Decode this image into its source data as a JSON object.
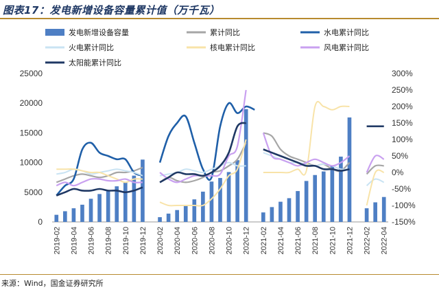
{
  "header": {
    "title": "图表17：发电新增设备容量累计值（万千瓦）"
  },
  "footer": {
    "source": "来源：Wind，国金证券研究所"
  },
  "chart_data": {
    "type": "bar+line",
    "title": "图表17：发电新增设备容量累计值（万千瓦）",
    "y_left": {
      "ticks": [
        0,
        5000,
        10000,
        15000,
        20000,
        25000
      ],
      "labels": [
        "0",
        "5000",
        "10000",
        "15000",
        "20000",
        "25000"
      ],
      "range": [
        0,
        25000
      ]
    },
    "y_right": {
      "ticks": [
        -150,
        -100,
        -50,
        0,
        50,
        100,
        150,
        200,
        250,
        300
      ],
      "labels": [
        "-150%",
        "-100%",
        "-50%",
        "0%",
        "50%",
        "100%",
        "150%",
        "200%",
        "250%",
        "300%"
      ],
      "range": [
        -150,
        300
      ]
    },
    "x_labels_shown": [
      "2019-02",
      "2019-04",
      "2019-06",
      "2019-08",
      "2019-10",
      "2019-12",
      "2020-02",
      "2020-04",
      "2020-06",
      "2020-08",
      "2020-10",
      "2020-12",
      "2021-02",
      "2021-04",
      "2021-06",
      "2021-08",
      "2021-10",
      "2021-12",
      "2022-02",
      "2022-04"
    ],
    "months": [
      "2019-02",
      "2019-03",
      "2019-04",
      "2019-05",
      "2019-06",
      "2019-07",
      "2019-08",
      "2019-09",
      "2019-10",
      "2019-11",
      "2019-12",
      "2020-01",
      "2020-02",
      "2020-03",
      "2020-04",
      "2020-05",
      "2020-06",
      "2020-07",
      "2020-08",
      "2020-09",
      "2020-10",
      "2020-11",
      "2020-12",
      "2021-01",
      "2021-02",
      "2021-03",
      "2021-04",
      "2021-05",
      "2021-06",
      "2021-07",
      "2021-08",
      "2021-09",
      "2021-10",
      "2021-11",
      "2021-12",
      "2022-01",
      "2022-02",
      "2022-03",
      "2022-04"
    ],
    "bars": {
      "name": "发电新增设备容量",
      "color": "#4e7fc4",
      "values": [
        1200,
        1800,
        2300,
        2900,
        3900,
        4700,
        5200,
        6000,
        6700,
        7800,
        10500,
        null,
        800,
        1400,
        2000,
        2800,
        3800,
        5100,
        6800,
        7400,
        8400,
        10400,
        19000,
        null,
        1600,
        2500,
        3400,
        4000,
        5200,
        6900,
        7900,
        8500,
        9400,
        11000,
        17600,
        null,
        2300,
        3300,
        4200
      ]
    },
    "series": [
      {
        "name": "累计同比",
        "color": "#a6a6a6",
        "values": [
          -30,
          -20,
          -10,
          -5,
          -10,
          -15,
          -10,
          0,
          0,
          5,
          15,
          null,
          -30,
          -15,
          -25,
          -30,
          -25,
          -15,
          0,
          5,
          20,
          40,
          90,
          null,
          120,
          110,
          70,
          50,
          40,
          30,
          20,
          25,
          10,
          5,
          30,
          null,
          -5,
          20,
          20
        ]
      },
      {
        "name": "水电累计同比",
        "color": "#1f5fa8",
        "values": [
          -70,
          -40,
          -20,
          70,
          90,
          60,
          50,
          40,
          40,
          0,
          -10,
          null,
          30,
          110,
          150,
          170,
          90,
          10,
          -15,
          140,
          210,
          180,
          200,
          190,
          null,
          null,
          null,
          null,
          null,
          null,
          null,
          null,
          null,
          null,
          null,
          null,
          null,
          null,
          null
        ]
      },
      {
        "name": "火电累计同比",
        "color": "#c9e3f3",
        "values": [
          -5,
          0,
          10,
          5,
          -5,
          0,
          5,
          10,
          5,
          0,
          -10,
          null,
          -10,
          -5,
          0,
          10,
          5,
          0,
          10,
          20,
          30,
          20,
          20,
          null,
          60,
          50,
          40,
          30,
          30,
          25,
          20,
          25,
          20,
          10,
          10,
          null,
          -40,
          -20,
          -30
        ]
      },
      {
        "name": "核电累计同比",
        "color": "#f8e3a8",
        "values": [
          10,
          10,
          10,
          5,
          0,
          0,
          -10,
          -20,
          -30,
          -20,
          -20,
          null,
          -90,
          -100,
          -100,
          -100,
          -100,
          -100,
          -80,
          -50,
          -10,
          10,
          100,
          null,
          0,
          0,
          0,
          0,
          10,
          5,
          200,
          200,
          190,
          200,
          200,
          null,
          -100,
          0,
          0
        ]
      },
      {
        "name": "风电累计同比",
        "color": "#c9a0f0",
        "values": [
          -40,
          -30,
          -40,
          -30,
          -20,
          -20,
          -25,
          -25,
          -20,
          -30,
          -30,
          null,
          0,
          -20,
          -30,
          -20,
          -10,
          -10,
          -10,
          -5,
          50,
          80,
          250,
          null,
          120,
          50,
          40,
          30,
          20,
          30,
          40,
          30,
          20,
          30,
          50,
          null,
          0,
          50,
          40
        ]
      },
      {
        "name": "太阳能累计同比",
        "color": "#1f3864",
        "values": [
          -70,
          -60,
          -50,
          -55,
          -55,
          -50,
          -55,
          -55,
          -60,
          -55,
          -45,
          null,
          -30,
          -15,
          0,
          -5,
          -5,
          -10,
          0,
          20,
          60,
          140,
          150,
          null,
          70,
          60,
          50,
          40,
          30,
          20,
          20,
          10,
          10,
          5,
          10,
          null,
          140,
          140,
          140
        ]
      }
    ],
    "legend": {
      "placement": "top",
      "items": [
        "发电新增设备容量",
        "累计同比",
        "水电累计同比",
        "火电累计同比",
        "核电累计同比",
        "风电累计同比",
        "太阳能累计同比"
      ]
    },
    "grid": false
  }
}
